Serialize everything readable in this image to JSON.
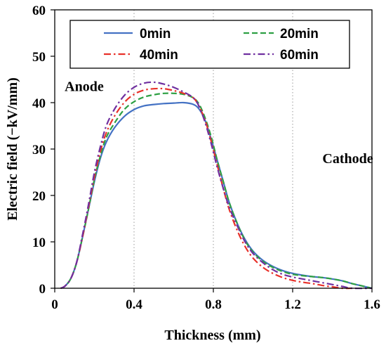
{
  "chart_data": {
    "type": "line",
    "title": "",
    "xlabel": "Thickness (mm)",
    "ylabel": "Electric field  (−kV/mm)",
    "xlim": [
      0,
      1.6
    ],
    "ylim": [
      0,
      60
    ],
    "xticks": [
      0,
      0.4,
      0.8,
      1.2,
      1.6
    ],
    "xtick_labels": [
      "0",
      "0.4",
      "0.8",
      "1.2",
      "1.6"
    ],
    "yticks": [
      0,
      10,
      20,
      30,
      40,
      50,
      60
    ],
    "ytick_labels": [
      "0",
      "10",
      "20",
      "30",
      "40",
      "50",
      "60"
    ],
    "grid": {
      "vertical": true,
      "horizontal": false,
      "style": "dotted"
    },
    "legend_position": "top",
    "annotations": [
      {
        "text": "Anode",
        "x": 0.05,
        "y": 42.5
      },
      {
        "text": "Cathode",
        "x": 1.35,
        "y": 27
      }
    ],
    "series": [
      {
        "name": "0min",
        "color": "#4472C4",
        "dash": "solid",
        "points": [
          [
            0.03,
            0
          ],
          [
            0.05,
            0.4
          ],
          [
            0.08,
            2
          ],
          [
            0.11,
            5.5
          ],
          [
            0.14,
            11
          ],
          [
            0.17,
            17
          ],
          [
            0.2,
            23
          ],
          [
            0.23,
            28
          ],
          [
            0.26,
            31.5
          ],
          [
            0.3,
            34.5
          ],
          [
            0.35,
            37
          ],
          [
            0.4,
            38.5
          ],
          [
            0.45,
            39.3
          ],
          [
            0.5,
            39.6
          ],
          [
            0.55,
            39.8
          ],
          [
            0.6,
            39.9
          ],
          [
            0.65,
            40
          ],
          [
            0.7,
            39.6
          ],
          [
            0.73,
            38.5
          ],
          [
            0.76,
            36
          ],
          [
            0.79,
            32
          ],
          [
            0.82,
            27.5
          ],
          [
            0.85,
            23
          ],
          [
            0.88,
            18.5
          ],
          [
            0.92,
            14
          ],
          [
            0.96,
            10.5
          ],
          [
            1.0,
            8
          ],
          [
            1.05,
            6
          ],
          [
            1.1,
            4.7
          ],
          [
            1.15,
            3.8
          ],
          [
            1.2,
            3.2
          ],
          [
            1.25,
            2.8
          ],
          [
            1.3,
            2.5
          ],
          [
            1.35,
            2.3
          ],
          [
            1.4,
            2
          ],
          [
            1.45,
            1.6
          ],
          [
            1.5,
            1
          ],
          [
            1.55,
            0.5
          ],
          [
            1.6,
            0
          ]
        ]
      },
      {
        "name": "20min",
        "color": "#2EA043",
        "dash": "dashed",
        "points": [
          [
            0.03,
            0
          ],
          [
            0.05,
            0.4
          ],
          [
            0.08,
            2
          ],
          [
            0.11,
            5.5
          ],
          [
            0.14,
            11
          ],
          [
            0.17,
            17
          ],
          [
            0.2,
            23.5
          ],
          [
            0.23,
            28.5
          ],
          [
            0.26,
            32.5
          ],
          [
            0.3,
            35.5
          ],
          [
            0.35,
            38.5
          ],
          [
            0.4,
            40.2
          ],
          [
            0.45,
            41.2
          ],
          [
            0.5,
            41.7
          ],
          [
            0.55,
            42
          ],
          [
            0.6,
            42
          ],
          [
            0.65,
            41.8
          ],
          [
            0.7,
            41
          ],
          [
            0.73,
            39.5
          ],
          [
            0.76,
            36.5
          ],
          [
            0.79,
            32.5
          ],
          [
            0.82,
            27.5
          ],
          [
            0.85,
            23
          ],
          [
            0.88,
            18.5
          ],
          [
            0.92,
            14
          ],
          [
            0.96,
            10.3
          ],
          [
            1.0,
            7.8
          ],
          [
            1.05,
            5.8
          ],
          [
            1.1,
            4.5
          ],
          [
            1.15,
            3.6
          ],
          [
            1.2,
            3
          ],
          [
            1.25,
            2.7
          ],
          [
            1.3,
            2.5
          ],
          [
            1.35,
            2.3
          ],
          [
            1.4,
            2
          ],
          [
            1.45,
            1.6
          ],
          [
            1.5,
            1
          ],
          [
            1.55,
            0.5
          ],
          [
            1.6,
            0
          ]
        ]
      },
      {
        "name": "40min",
        "color": "#E8312A",
        "dash": "dashdot",
        "points": [
          [
            0.03,
            0
          ],
          [
            0.05,
            0.4
          ],
          [
            0.08,
            2
          ],
          [
            0.11,
            5.5
          ],
          [
            0.14,
            11
          ],
          [
            0.17,
            17.5
          ],
          [
            0.2,
            24
          ],
          [
            0.23,
            29.5
          ],
          [
            0.26,
            33.5
          ],
          [
            0.3,
            37
          ],
          [
            0.35,
            40
          ],
          [
            0.4,
            41.8
          ],
          [
            0.45,
            42.7
          ],
          [
            0.5,
            43
          ],
          [
            0.55,
            43
          ],
          [
            0.6,
            42.6
          ],
          [
            0.65,
            42
          ],
          [
            0.7,
            41
          ],
          [
            0.73,
            39
          ],
          [
            0.76,
            36
          ],
          [
            0.79,
            31.5
          ],
          [
            0.82,
            26.5
          ],
          [
            0.85,
            21.5
          ],
          [
            0.88,
            17
          ],
          [
            0.92,
            12.5
          ],
          [
            0.96,
            9
          ],
          [
            1.0,
            6.5
          ],
          [
            1.05,
            4.5
          ],
          [
            1.1,
            3.2
          ],
          [
            1.15,
            2.3
          ],
          [
            1.2,
            1.7
          ],
          [
            1.25,
            1.3
          ],
          [
            1.3,
            1
          ],
          [
            1.35,
            0.6
          ],
          [
            1.4,
            0.3
          ],
          [
            1.45,
            0
          ],
          [
            1.5,
            0
          ]
        ]
      },
      {
        "name": "60min",
        "color": "#7030A0",
        "dash": "dashdot",
        "points": [
          [
            0.03,
            0
          ],
          [
            0.05,
            0.4
          ],
          [
            0.08,
            2
          ],
          [
            0.11,
            5.5
          ],
          [
            0.14,
            11.5
          ],
          [
            0.17,
            18
          ],
          [
            0.2,
            25
          ],
          [
            0.23,
            30.5
          ],
          [
            0.26,
            35
          ],
          [
            0.3,
            38.5
          ],
          [
            0.35,
            41.5
          ],
          [
            0.4,
            43.3
          ],
          [
            0.45,
            44.2
          ],
          [
            0.5,
            44.4
          ],
          [
            0.55,
            44
          ],
          [
            0.6,
            43.3
          ],
          [
            0.65,
            42.3
          ],
          [
            0.7,
            41
          ],
          [
            0.73,
            39
          ],
          [
            0.76,
            35.5
          ],
          [
            0.79,
            31
          ],
          [
            0.82,
            26
          ],
          [
            0.85,
            21.5
          ],
          [
            0.88,
            17.5
          ],
          [
            0.92,
            13.5
          ],
          [
            0.96,
            10
          ],
          [
            1.0,
            7.5
          ],
          [
            1.05,
            5.5
          ],
          [
            1.1,
            4
          ],
          [
            1.15,
            3
          ],
          [
            1.2,
            2.4
          ],
          [
            1.25,
            2
          ],
          [
            1.3,
            1.6
          ],
          [
            1.35,
            1.2
          ],
          [
            1.4,
            0.8
          ],
          [
            1.45,
            0.4
          ],
          [
            1.5,
            0
          ],
          [
            1.6,
            0
          ]
        ]
      }
    ]
  }
}
